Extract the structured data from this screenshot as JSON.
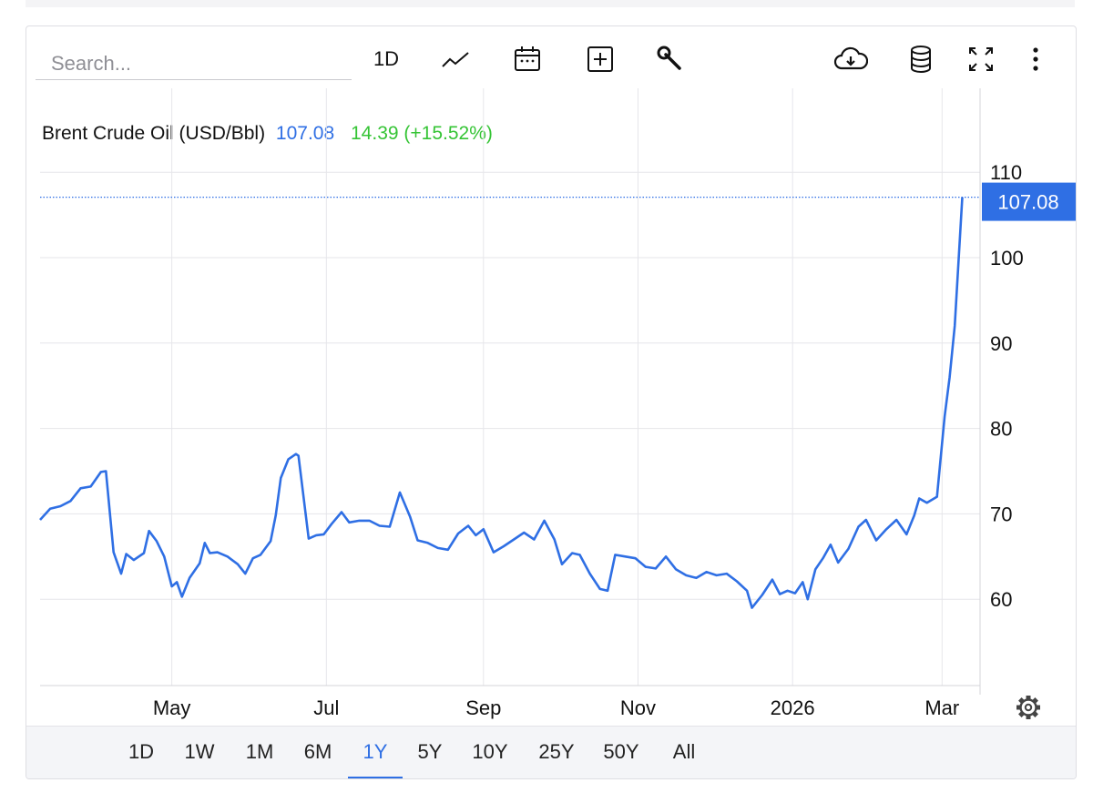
{
  "toolbar": {
    "search_placeholder": "Search...",
    "interval_label": "1D",
    "icons": [
      "chart-type-icon",
      "calendar-icon",
      "add-indicator-icon",
      "wrench-icon",
      "cloud-download-icon",
      "database-icon",
      "fullscreen-icon",
      "more-vert-icon",
      "gear-icon"
    ]
  },
  "legend": {
    "name": "Brent Crude Oil (USD/Bbl)",
    "price": "107.08",
    "change": "14.39 (+15.52%)"
  },
  "colors": {
    "line": "#2f6fe4",
    "change_positive": "#35c435",
    "grid": "#e6e6ea",
    "price_tag": "#2f6fe4"
  },
  "chart_data": {
    "type": "line",
    "title": "Brent Crude Oil (USD/Bbl)",
    "x_tick_labels": [
      "May",
      "Jul",
      "Sep",
      "Nov",
      "2026",
      "Mar"
    ],
    "x_tick_dates": [
      "2025-05-01",
      "2025-07-01",
      "2025-09-01",
      "2025-11-01",
      "2026-01-01",
      "2026-03-01"
    ],
    "x_range": [
      "2025-03-10",
      "2026-03-16"
    ],
    "y_ticks": [
      60,
      70,
      80,
      90,
      100,
      110
    ],
    "ylim": [
      50,
      114
    ],
    "grid": true,
    "last_price_label": "107.08",
    "series": [
      {
        "name": "Brent Crude Oil (USD/Bbl)",
        "points": [
          [
            "2025-03-10",
            69.3
          ],
          [
            "2025-03-14",
            70.6
          ],
          [
            "2025-03-18",
            70.9
          ],
          [
            "2025-03-22",
            71.5
          ],
          [
            "2025-03-26",
            73.0
          ],
          [
            "2025-03-30",
            73.2
          ],
          [
            "2025-04-03",
            74.9
          ],
          [
            "2025-04-05",
            75.0
          ],
          [
            "2025-04-08",
            65.5
          ],
          [
            "2025-04-11",
            63.0
          ],
          [
            "2025-04-13",
            65.3
          ],
          [
            "2025-04-16",
            64.6
          ],
          [
            "2025-04-20",
            65.4
          ],
          [
            "2025-04-22",
            68.0
          ],
          [
            "2025-04-25",
            66.8
          ],
          [
            "2025-04-28",
            65.0
          ],
          [
            "2025-05-01",
            61.5
          ],
          [
            "2025-05-03",
            62.0
          ],
          [
            "2025-05-05",
            60.3
          ],
          [
            "2025-05-08",
            62.5
          ],
          [
            "2025-05-12",
            64.2
          ],
          [
            "2025-05-14",
            66.6
          ],
          [
            "2025-05-16",
            65.4
          ],
          [
            "2025-05-19",
            65.5
          ],
          [
            "2025-05-23",
            65.0
          ],
          [
            "2025-05-27",
            64.1
          ],
          [
            "2025-05-30",
            63.0
          ],
          [
            "2025-06-02",
            64.8
          ],
          [
            "2025-06-05",
            65.2
          ],
          [
            "2025-06-09",
            66.8
          ],
          [
            "2025-06-11",
            69.8
          ],
          [
            "2025-06-13",
            74.2
          ],
          [
            "2025-06-16",
            76.4
          ],
          [
            "2025-06-19",
            77.0
          ],
          [
            "2025-06-20",
            76.8
          ],
          [
            "2025-06-24",
            67.1
          ],
          [
            "2025-06-27",
            67.5
          ],
          [
            "2025-06-30",
            67.6
          ],
          [
            "2025-07-03",
            68.8
          ],
          [
            "2025-07-07",
            70.2
          ],
          [
            "2025-07-10",
            69.0
          ],
          [
            "2025-07-14",
            69.2
          ],
          [
            "2025-07-18",
            69.2
          ],
          [
            "2025-07-22",
            68.6
          ],
          [
            "2025-07-26",
            68.5
          ],
          [
            "2025-07-30",
            72.5
          ],
          [
            "2025-08-03",
            69.7
          ],
          [
            "2025-08-06",
            66.9
          ],
          [
            "2025-08-10",
            66.6
          ],
          [
            "2025-08-14",
            66.0
          ],
          [
            "2025-08-18",
            65.8
          ],
          [
            "2025-08-22",
            67.7
          ],
          [
            "2025-08-26",
            68.6
          ],
          [
            "2025-08-29",
            67.5
          ],
          [
            "2025-09-01",
            68.2
          ],
          [
            "2025-09-05",
            65.5
          ],
          [
            "2025-09-09",
            66.2
          ],
          [
            "2025-09-13",
            67.0
          ],
          [
            "2025-09-17",
            67.8
          ],
          [
            "2025-09-21",
            67.0
          ],
          [
            "2025-09-25",
            69.2
          ],
          [
            "2025-09-29",
            67.0
          ],
          [
            "2025-10-02",
            64.1
          ],
          [
            "2025-10-06",
            65.4
          ],
          [
            "2025-10-09",
            65.2
          ],
          [
            "2025-10-13",
            63.0
          ],
          [
            "2025-10-17",
            61.2
          ],
          [
            "2025-10-20",
            61.0
          ],
          [
            "2025-10-23",
            65.2
          ],
          [
            "2025-10-27",
            65.0
          ],
          [
            "2025-10-31",
            64.8
          ],
          [
            "2025-11-04",
            63.8
          ],
          [
            "2025-11-08",
            63.6
          ],
          [
            "2025-11-12",
            65.0
          ],
          [
            "2025-11-16",
            63.5
          ],
          [
            "2025-11-20",
            62.8
          ],
          [
            "2025-11-24",
            62.5
          ],
          [
            "2025-11-28",
            63.2
          ],
          [
            "2025-12-02",
            62.8
          ],
          [
            "2025-12-06",
            63.0
          ],
          [
            "2025-12-10",
            62.1
          ],
          [
            "2025-12-14",
            61.0
          ],
          [
            "2025-12-16",
            59.0
          ],
          [
            "2025-12-20",
            60.5
          ],
          [
            "2025-12-24",
            62.3
          ],
          [
            "2025-12-27",
            60.6
          ],
          [
            "2025-12-30",
            61.0
          ],
          [
            "2026-01-02",
            60.7
          ],
          [
            "2026-01-05",
            62.0
          ],
          [
            "2026-01-07",
            60.0
          ],
          [
            "2026-01-10",
            63.5
          ],
          [
            "2026-01-13",
            64.8
          ],
          [
            "2026-01-16",
            66.4
          ],
          [
            "2026-01-19",
            64.3
          ],
          [
            "2026-01-23",
            65.9
          ],
          [
            "2026-01-27",
            68.5
          ],
          [
            "2026-01-30",
            69.3
          ],
          [
            "2026-02-03",
            66.9
          ],
          [
            "2026-02-07",
            68.2
          ],
          [
            "2026-02-11",
            69.3
          ],
          [
            "2026-02-15",
            67.6
          ],
          [
            "2026-02-18",
            69.8
          ],
          [
            "2026-02-20",
            71.8
          ],
          [
            "2026-02-23",
            71.3
          ],
          [
            "2026-02-27",
            72.0
          ],
          [
            "2026-03-02",
            81.4
          ],
          [
            "2026-03-04",
            86.0
          ],
          [
            "2026-03-06",
            92.0
          ],
          [
            "2026-03-09",
            107.08
          ]
        ]
      }
    ]
  },
  "range_selector": {
    "options": [
      "1D",
      "1W",
      "1M",
      "6M",
      "1Y",
      "5Y",
      "10Y",
      "25Y",
      "50Y",
      "All"
    ],
    "active": "1Y"
  }
}
